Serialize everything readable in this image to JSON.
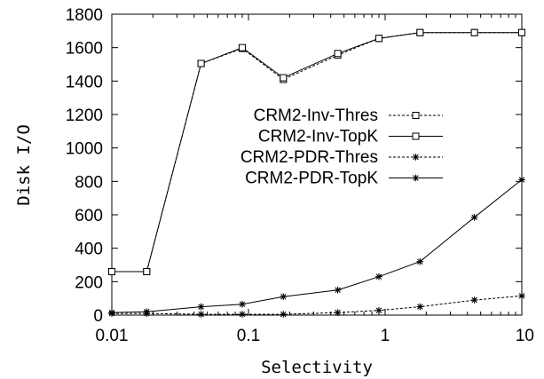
{
  "chart_data": {
    "type": "line",
    "title": "",
    "xlabel": "Selectivity",
    "ylabel": "Disk I/O",
    "x_scale": "log",
    "xlim": [
      0.01,
      10
    ],
    "ylim": [
      0,
      1800
    ],
    "x_ticks": [
      {
        "value": 0.01,
        "label": "0.01"
      },
      {
        "value": 0.1,
        "label": "0.1"
      },
      {
        "value": 1,
        "label": "1"
      },
      {
        "value": 10,
        "label": "10"
      }
    ],
    "y_ticks": [
      {
        "value": 0,
        "label": "0"
      },
      {
        "value": 200,
        "label": "200"
      },
      {
        "value": 400,
        "label": "400"
      },
      {
        "value": 600,
        "label": "600"
      },
      {
        "value": 800,
        "label": "800"
      },
      {
        "value": 1000,
        "label": "1000"
      },
      {
        "value": 1200,
        "label": "1200"
      },
      {
        "value": 1400,
        "label": "1400"
      },
      {
        "value": 1600,
        "label": "1600"
      },
      {
        "value": 1800,
        "label": "1800"
      }
    ],
    "grid": false,
    "legend_position": "center-right",
    "series": [
      {
        "name": "CRM2-Inv-Thres",
        "marker": "square",
        "dash": true,
        "x": [
          0.01,
          0.018,
          0.045,
          0.09,
          0.18,
          0.45,
          0.9,
          1.8,
          4.5,
          10
        ],
        "y": [
          260,
          260,
          1505,
          1595,
          1410,
          1555,
          1655,
          1690,
          1690,
          1690
        ]
      },
      {
        "name": "CRM2-Inv-TopK",
        "marker": "square",
        "dash": false,
        "x": [
          0.01,
          0.018,
          0.045,
          0.09,
          0.18,
          0.45,
          0.9,
          1.8,
          4.5,
          10
        ],
        "y": [
          260,
          260,
          1505,
          1600,
          1420,
          1565,
          1655,
          1690,
          1690,
          1690
        ]
      },
      {
        "name": "CRM2-PDR-Thres",
        "marker": "star",
        "dash": true,
        "x": [
          0.01,
          0.018,
          0.045,
          0.09,
          0.18,
          0.45,
          0.9,
          1.8,
          4.5,
          10
        ],
        "y": [
          10,
          10,
          5,
          5,
          5,
          15,
          28,
          50,
          90,
          115
        ]
      },
      {
        "name": "CRM2-PDR-TopK",
        "marker": "star",
        "dash": false,
        "x": [
          0.01,
          0.018,
          0.045,
          0.09,
          0.18,
          0.45,
          0.9,
          1.8,
          4.5,
          10
        ],
        "y": [
          15,
          20,
          50,
          65,
          110,
          150,
          230,
          320,
          585,
          810
        ]
      }
    ]
  }
}
